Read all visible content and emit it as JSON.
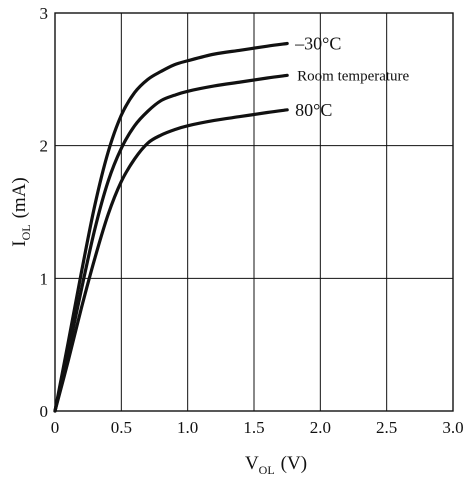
{
  "chart_data": {
    "type": "line",
    "xlabel": {
      "main": "V",
      "sub": "OL",
      "unit": "(V)"
    },
    "ylabel": {
      "main": "I",
      "sub": "OL",
      "unit": "(mA)"
    },
    "xlim": [
      0,
      3.0
    ],
    "ylim": [
      0,
      3
    ],
    "xticks": [
      "0",
      "0.5",
      "1.0",
      "1.5",
      "2.0",
      "2.5",
      "3.0"
    ],
    "yticks": [
      "0",
      "1",
      "2",
      "3"
    ],
    "grid": true,
    "legend": "inline labels at right end of each curve",
    "series": [
      {
        "name": "–30°C",
        "x": [
          0,
          0.1,
          0.2,
          0.3,
          0.4,
          0.5,
          0.6,
          0.7,
          0.8,
          0.9,
          1.0,
          1.2,
          1.4,
          1.6,
          1.75
        ],
        "y": [
          0,
          0.52,
          1.05,
          1.55,
          1.95,
          2.23,
          2.4,
          2.5,
          2.56,
          2.61,
          2.64,
          2.69,
          2.72,
          2.75,
          2.77
        ]
      },
      {
        "name": "Room temperature",
        "x": [
          0,
          0.1,
          0.2,
          0.3,
          0.4,
          0.5,
          0.6,
          0.7,
          0.8,
          0.9,
          1.0,
          1.2,
          1.4,
          1.6,
          1.75
        ],
        "y": [
          0,
          0.45,
          0.92,
          1.37,
          1.73,
          1.98,
          2.15,
          2.26,
          2.34,
          2.38,
          2.41,
          2.45,
          2.48,
          2.51,
          2.53
        ]
      },
      {
        "name": "80°C",
        "x": [
          0,
          0.1,
          0.2,
          0.3,
          0.4,
          0.5,
          0.6,
          0.7,
          0.8,
          0.9,
          1.0,
          1.2,
          1.4,
          1.6,
          1.75
        ],
        "y": [
          0,
          0.38,
          0.78,
          1.15,
          1.48,
          1.73,
          1.9,
          2.02,
          2.08,
          2.12,
          2.15,
          2.19,
          2.22,
          2.25,
          2.27
        ]
      }
    ]
  }
}
